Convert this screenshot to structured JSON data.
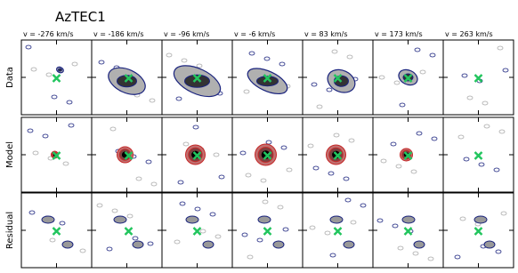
{
  "title": "AzTEC1",
  "columns": [
    "v = -276 km/s",
    "v = -186 km/s",
    "v = -96 km/s",
    "v = -6 km/s",
    "v = 83 km/s",
    "v = 173 km/s",
    "v = 263 km/s"
  ],
  "rows": [
    "Data",
    "Model",
    "Residual"
  ]
}
